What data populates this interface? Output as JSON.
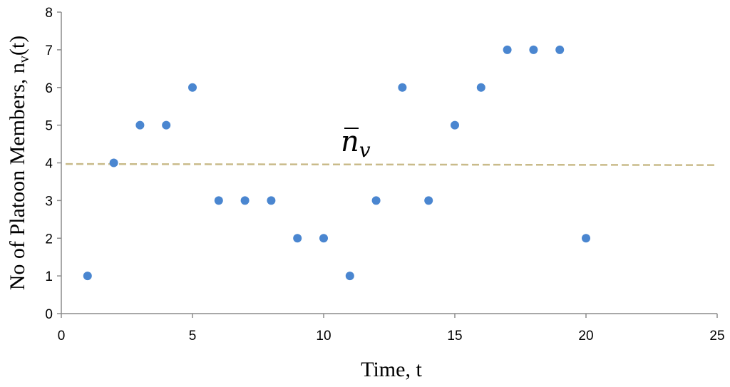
{
  "chart_data": {
    "type": "scatter",
    "title": "",
    "xlabel": "Time, t",
    "ylabel": "No of Platoon Members, n",
    "ylabel_sub": "v",
    "ylabel_suffix": "(t)",
    "xlim": [
      0,
      25
    ],
    "ylim": [
      0,
      8
    ],
    "xticks": [
      0,
      5,
      10,
      15,
      20,
      25
    ],
    "yticks": [
      0,
      1,
      2,
      3,
      4,
      5,
      6,
      7,
      8
    ],
    "grid": false,
    "legend": "none",
    "series": [
      {
        "x": [
          1,
          2,
          3,
          4,
          5,
          6,
          7,
          8,
          9,
          10,
          11,
          12,
          13,
          14,
          15,
          16,
          17,
          18,
          19,
          20
        ],
        "y": [
          1,
          4,
          5,
          5,
          6,
          3,
          3,
          3,
          2,
          2,
          1,
          3,
          6,
          3,
          5,
          6,
          7,
          7,
          7,
          2
        ],
        "color": "#4a86d0"
      }
    ],
    "mean_line": {
      "label_base": "n",
      "label_sub": "v",
      "y_start": 3.97,
      "y_end": 3.94,
      "color": "#c9bb8a",
      "style": "dashed"
    }
  }
}
